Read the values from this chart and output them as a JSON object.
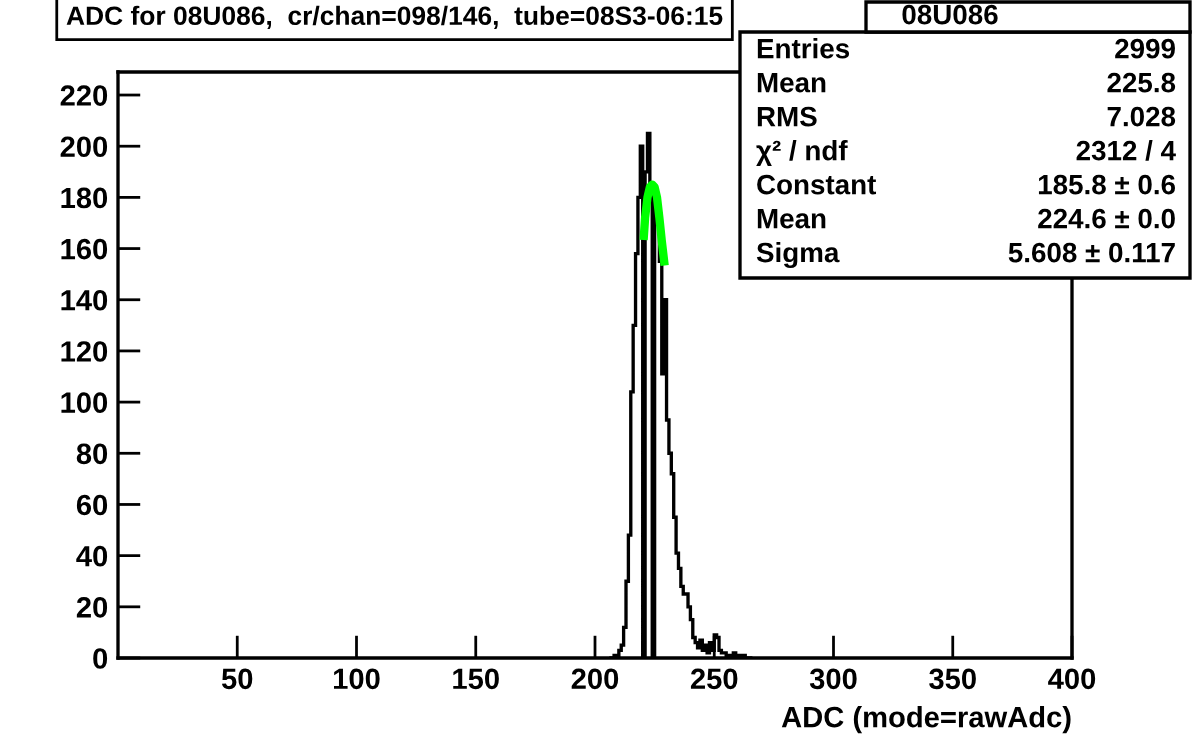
{
  "chart_data": {
    "type": "histogram",
    "title": "ADC for 08U086,  cr/chan=098/146,  tube=08S3-06:15",
    "xlabel": "ADC (mode=rawAdc)",
    "bins": [
      206,
      207,
      208,
      209,
      210,
      211,
      212,
      213,
      214,
      215,
      216,
      217,
      218,
      219,
      220,
      221,
      222,
      223,
      224,
      225,
      226,
      227,
      228,
      229,
      230,
      231,
      232,
      233,
      234,
      235,
      236,
      237,
      238,
      239,
      240,
      241,
      242,
      243,
      244,
      245,
      246,
      247,
      248,
      249,
      250,
      251,
      252,
      253,
      254,
      255,
      256,
      257,
      258,
      259,
      260,
      261,
      262,
      263,
      264,
      265,
      266
    ],
    "values": [
      0,
      0,
      1,
      1,
      3,
      5,
      12,
      30,
      48,
      104,
      130,
      158,
      180,
      200,
      null,
      190,
      205,
      185,
      null,
      180,
      170,
      155,
      111,
      140,
      93,
      80,
      72,
      55,
      41,
      35,
      28,
      25,
      25,
      20,
      15,
      8,
      6,
      4,
      7,
      3,
      5,
      2,
      6,
      3,
      9,
      8,
      3,
      2,
      2,
      1,
      1,
      0,
      2,
      0,
      1,
      0,
      1,
      0,
      0,
      0
    ],
    "color": "#000000",
    "series": [
      {
        "type": "line",
        "color": "#00ff00",
        "x": [
          220.5,
          221,
          222,
          223,
          224,
          225,
          226,
          227,
          228,
          229
        ],
        "values": [
          165,
          172,
          180,
          184,
          185,
          184,
          180,
          172,
          163,
          155
        ]
      }
    ],
    "xlim": [
      0,
      400
    ],
    "xticks": [
      50,
      100,
      150,
      200,
      250,
      300,
      350,
      400
    ],
    "ylim": [
      0,
      229
    ],
    "yticks": [
      0,
      20,
      40,
      60,
      80,
      100,
      120,
      140,
      160,
      180,
      200,
      220
    ],
    "grid": false,
    "annotations": [
      "08U086",
      "Entries",
      "2999",
      "Mean",
      "225.8",
      "RMS",
      "7.028",
      "χ² / ndf",
      "2312 / 4",
      "Constant",
      "185.8 ± 0.6",
      "Mean",
      "224.6 ± 0.0",
      "Sigma",
      "5.608 ± 0.117"
    ]
  }
}
